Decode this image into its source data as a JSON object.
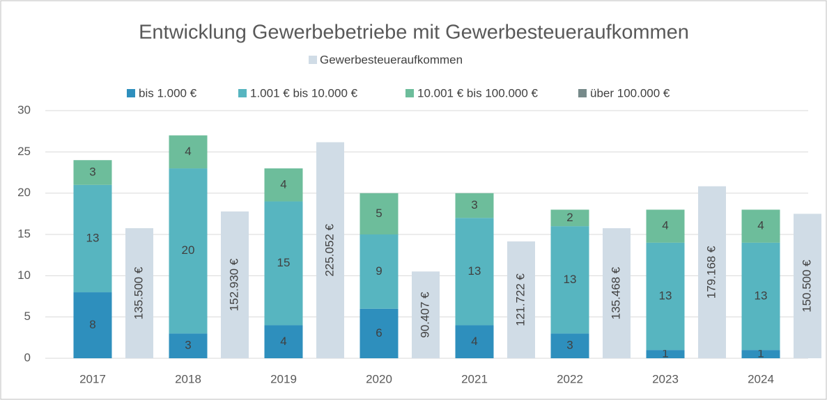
{
  "chart_data": {
    "type": "bar",
    "stacked": true,
    "title": "Entwicklung Gewerbebetriebe mit Gewerbesteueraufkommen",
    "categories": [
      "2017",
      "2018",
      "2019",
      "2020",
      "2021",
      "2022",
      "2023",
      "2024"
    ],
    "series": [
      {
        "name": "bis 1.000 €",
        "color": "#2e8fbd",
        "values": [
          8,
          3,
          4,
          6,
          4,
          3,
          1,
          1
        ]
      },
      {
        "name": "1.001 € bis 10.000 €",
        "color": "#57b5c0",
        "values": [
          13,
          20,
          15,
          9,
          13,
          13,
          13,
          13
        ]
      },
      {
        "name": "10.001 € bis 100.000 €",
        "color": "#6dbd9b",
        "values": [
          3,
          4,
          4,
          5,
          3,
          2,
          4,
          4
        ]
      },
      {
        "name": "über 100.000 €",
        "color": "#778a8a",
        "values": [
          0,
          0,
          0,
          0,
          0,
          0,
          0,
          0
        ]
      },
      {
        "name": "Gewerbesteueraufkommen",
        "color": "#d0dce6",
        "axis": "y2",
        "values": [
          135500,
          152930,
          225052,
          90407,
          121722,
          135468,
          179168,
          150500
        ],
        "value_labels": [
          "135.500 €",
          "152.930 €",
          "225.052 €",
          "90.407 €",
          "121.722 €",
          "135.468 €",
          "179.168 €",
          "150.500 €"
        ]
      }
    ],
    "ylim": [
      0,
      30
    ],
    "yticks": [
      0,
      5,
      10,
      15,
      20,
      25,
      30
    ],
    "y2lim": [
      0,
      258000
    ],
    "grid": true,
    "legend": "top"
  }
}
